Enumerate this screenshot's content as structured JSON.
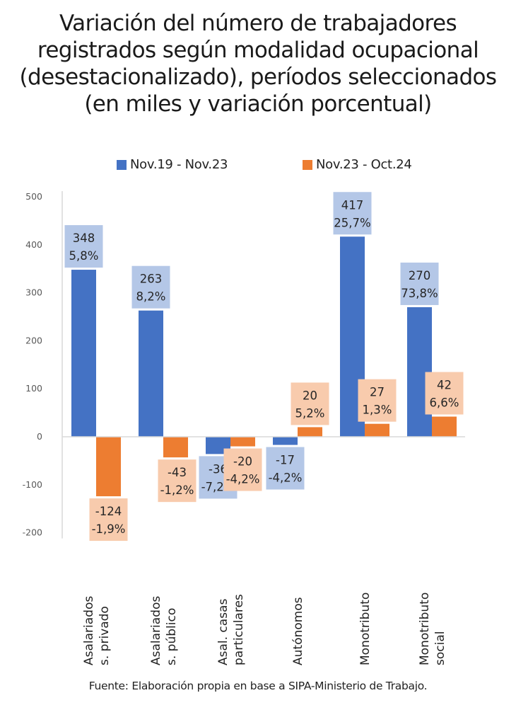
{
  "title_lines": [
    "Variación del número de trabajadores",
    "registrados según modalidad ocupacional",
    "(desestacionalizado), períodos seleccionados",
    "(en miles y variación porcentual)"
  ],
  "source": "Fuente: Elaboración propia en base a SIPA-Ministerio de Trabajo.",
  "colors": {
    "series1": "#4472C4",
    "series2": "#ED7D31",
    "label1_bg": "#B4C7E7",
    "label2_bg": "#F8CBAD",
    "axis": "#D9D9D9",
    "tick_text": "#595959"
  },
  "chart_data": {
    "type": "bar",
    "title": "Variación del número de trabajadores registrados según modalidad ocupacional (desestacionalizado), períodos seleccionados (en miles y variación porcentual)",
    "xlabel": "",
    "ylabel": "",
    "ylim": [
      -200,
      500
    ],
    "yticks": [
      500,
      400,
      300,
      200,
      100,
      0,
      -100,
      -200
    ],
    "grid": false,
    "legend_position": "top",
    "categories": [
      [
        "Asalariados",
        "s. privado"
      ],
      [
        "Asalariados",
        "s. público"
      ],
      [
        "Asal. casas",
        "particulares"
      ],
      [
        "Autónomos"
      ],
      [
        "Monotributo"
      ],
      [
        "Monotributo",
        "social"
      ]
    ],
    "series": [
      {
        "name": "Nov.19 - Nov.23",
        "values": [
          348,
          263,
          -36,
          -17,
          417,
          270
        ],
        "labels": [
          [
            "348",
            "5,8%"
          ],
          [
            "263",
            "8,2%"
          ],
          [
            "-36",
            "-7,2%"
          ],
          [
            "-17",
            "-4,2%"
          ],
          [
            "417",
            "25,7%"
          ],
          [
            "270",
            "73,8%"
          ]
        ]
      },
      {
        "name": "Nov.23 - Oct.24",
        "values": [
          -124,
          -43,
          -20,
          20,
          27,
          42
        ],
        "labels": [
          [
            "-124",
            "-1,9%"
          ],
          [
            "-43",
            "-1,2%"
          ],
          [
            "-20",
            "-4,2%"
          ],
          [
            "20",
            "5,2%"
          ],
          [
            "27",
            "1,3%"
          ],
          [
            "42",
            "6,6%"
          ]
        ]
      }
    ]
  }
}
